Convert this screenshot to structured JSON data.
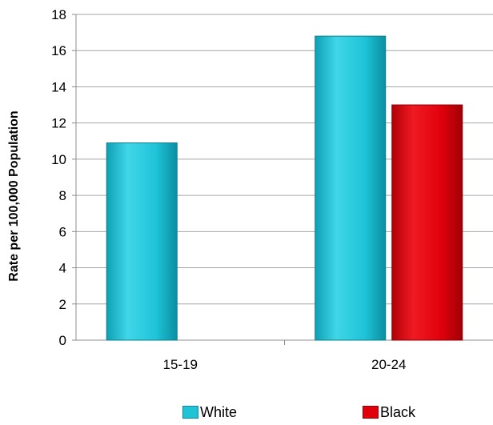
{
  "chart_data": {
    "type": "bar",
    "categories": [
      "15-19",
      "20-24"
    ],
    "series": [
      {
        "name": "White",
        "values": [
          10.9,
          16.8
        ],
        "color": "#1ec3d6"
      },
      {
        "name": "Black",
        "values": [
          null,
          13.0
        ],
        "color": "#e0000b"
      }
    ],
    "ylabel": "Rate per 100,000 Population",
    "xlabel": "",
    "ylim": [
      0,
      18
    ],
    "yticks": [
      "0",
      "2",
      "4",
      "6",
      "8",
      "10",
      "12",
      "14",
      "16",
      "18"
    ],
    "grid": true,
    "legend_position": "bottom"
  }
}
